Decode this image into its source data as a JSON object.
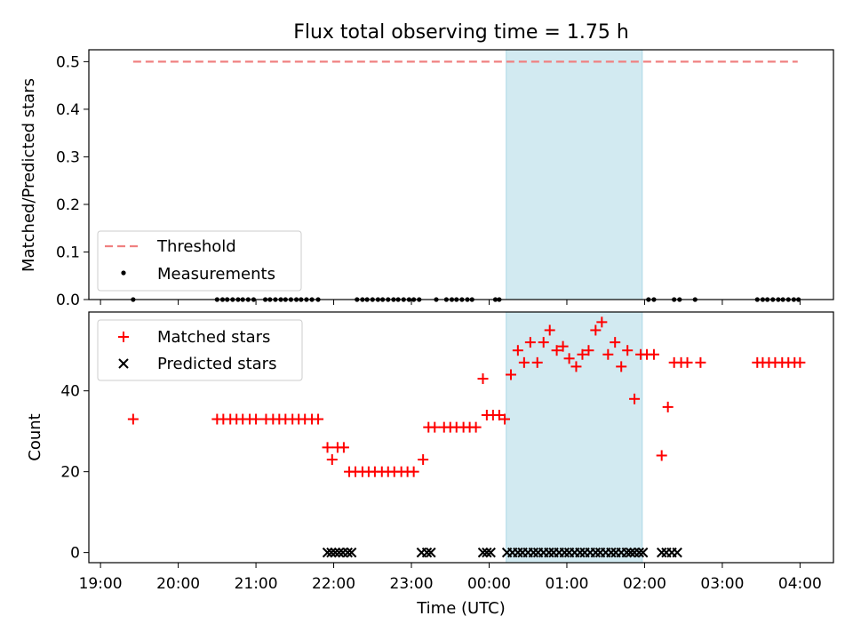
{
  "chart_data": {
    "title": "Flux total observing time = 1.75 h",
    "x_label": "Time (UTC)",
    "x_range_hours": [
      18.85,
      28.43
    ],
    "x_ticks": [
      {
        "v": 19,
        "label": "19:00"
      },
      {
        "v": 20,
        "label": "20:00"
      },
      {
        "v": 21,
        "label": "21:00"
      },
      {
        "v": 22,
        "label": "22:00"
      },
      {
        "v": 23,
        "label": "23:00"
      },
      {
        "v": 24,
        "label": "00:00"
      },
      {
        "v": 25,
        "label": "01:00"
      },
      {
        "v": 26,
        "label": "02:00"
      },
      {
        "v": 27,
        "label": "03:00"
      },
      {
        "v": 28,
        "label": "04:00"
      }
    ],
    "shaded_interval_hours": [
      24.22,
      25.97
    ],
    "colors": {
      "threshold": "#f08080",
      "matched": "#ff0000",
      "predicted": "#000000",
      "shade": "#add8e6"
    },
    "top": {
      "type": "scatter",
      "y_label": "Matched/Predicted stars",
      "y_range": [
        0,
        0.525
      ],
      "y_ticks": [
        {
          "v": 0,
          "label": "0.0"
        },
        {
          "v": 0.1,
          "label": "0.1"
        },
        {
          "v": 0.2,
          "label": "0.2"
        },
        {
          "v": 0.3,
          "label": "0.3"
        },
        {
          "v": 0.4,
          "label": "0.4"
        },
        {
          "v": 0.5,
          "label": "0.5"
        }
      ],
      "threshold": {
        "value": 0.5,
        "x_start": 19.42,
        "x_end": 27.97
      },
      "legend": {
        "threshold": "Threshold",
        "measurements": "Measurements"
      },
      "measurements": [
        [
          19.42,
          0
        ],
        [
          20.5,
          0
        ],
        [
          20.57,
          0
        ],
        [
          20.63,
          0
        ],
        [
          20.7,
          0
        ],
        [
          20.77,
          0
        ],
        [
          20.83,
          0
        ],
        [
          20.9,
          0
        ],
        [
          20.97,
          0
        ],
        [
          21.12,
          0
        ],
        [
          21.18,
          0
        ],
        [
          21.25,
          0
        ],
        [
          21.32,
          0
        ],
        [
          21.38,
          0
        ],
        [
          21.45,
          0
        ],
        [
          21.52,
          0
        ],
        [
          21.58,
          0
        ],
        [
          21.65,
          0
        ],
        [
          21.72,
          0
        ],
        [
          21.8,
          0
        ],
        [
          22.3,
          0
        ],
        [
          22.37,
          0
        ],
        [
          22.43,
          0
        ],
        [
          22.5,
          0
        ],
        [
          22.57,
          0
        ],
        [
          22.63,
          0
        ],
        [
          22.7,
          0
        ],
        [
          22.77,
          0
        ],
        [
          22.83,
          0
        ],
        [
          22.9,
          0
        ],
        [
          22.97,
          0
        ],
        [
          23.03,
          0
        ],
        [
          23.1,
          0
        ],
        [
          23.32,
          0
        ],
        [
          23.45,
          0
        ],
        [
          23.52,
          0
        ],
        [
          23.58,
          0
        ],
        [
          23.65,
          0
        ],
        [
          23.72,
          0
        ],
        [
          23.78,
          0
        ],
        [
          24.08,
          0
        ],
        [
          24.13,
          0
        ],
        [
          26.05,
          0
        ],
        [
          26.12,
          0
        ],
        [
          26.38,
          0
        ],
        [
          26.45,
          0
        ],
        [
          26.65,
          0
        ],
        [
          27.45,
          0
        ],
        [
          27.52,
          0
        ],
        [
          27.58,
          0
        ],
        [
          27.65,
          0
        ],
        [
          27.72,
          0
        ],
        [
          27.78,
          0
        ],
        [
          27.85,
          0
        ],
        [
          27.92,
          0
        ],
        [
          27.98,
          0
        ]
      ]
    },
    "bottom": {
      "type": "scatter",
      "y_label": "Count",
      "y_range": [
        -2.5,
        59.5
      ],
      "y_ticks": [
        {
          "v": 0,
          "label": "0"
        },
        {
          "v": 20,
          "label": "20"
        },
        {
          "v": 40,
          "label": "40"
        }
      ],
      "legend": {
        "matched": "Matched stars",
        "predicted": "Predicted stars"
      },
      "matched": [
        [
          19.42,
          33
        ],
        [
          20.5,
          33
        ],
        [
          20.58,
          33
        ],
        [
          20.67,
          33
        ],
        [
          20.75,
          33
        ],
        [
          20.83,
          33
        ],
        [
          20.92,
          33
        ],
        [
          21.0,
          33
        ],
        [
          21.13,
          33
        ],
        [
          21.22,
          33
        ],
        [
          21.3,
          33
        ],
        [
          21.38,
          33
        ],
        [
          21.47,
          33
        ],
        [
          21.55,
          33
        ],
        [
          21.63,
          33
        ],
        [
          21.72,
          33
        ],
        [
          21.8,
          33
        ],
        [
          21.92,
          26
        ],
        [
          21.98,
          23
        ],
        [
          22.05,
          26
        ],
        [
          22.13,
          26
        ],
        [
          22.2,
          20
        ],
        [
          22.28,
          20
        ],
        [
          22.37,
          20
        ],
        [
          22.45,
          20
        ],
        [
          22.53,
          20
        ],
        [
          22.62,
          20
        ],
        [
          22.7,
          20
        ],
        [
          22.78,
          20
        ],
        [
          22.87,
          20
        ],
        [
          22.95,
          20
        ],
        [
          23.03,
          20
        ],
        [
          23.15,
          23
        ],
        [
          23.22,
          31
        ],
        [
          23.3,
          31
        ],
        [
          23.42,
          31
        ],
        [
          23.5,
          31
        ],
        [
          23.58,
          31
        ],
        [
          23.67,
          31
        ],
        [
          23.75,
          31
        ],
        [
          23.83,
          31
        ],
        [
          23.92,
          43
        ],
        [
          23.97,
          34
        ],
        [
          24.05,
          34
        ],
        [
          24.13,
          34
        ],
        [
          24.2,
          33
        ],
        [
          24.28,
          44
        ],
        [
          24.37,
          50
        ],
        [
          24.45,
          47
        ],
        [
          24.53,
          52
        ],
        [
          24.62,
          47
        ],
        [
          24.7,
          52
        ],
        [
          24.78,
          55
        ],
        [
          24.87,
          50
        ],
        [
          24.95,
          51
        ],
        [
          25.03,
          48
        ],
        [
          25.12,
          46
        ],
        [
          25.2,
          49
        ],
        [
          25.28,
          50
        ],
        [
          25.37,
          55
        ],
        [
          25.45,
          57
        ],
        [
          25.53,
          49
        ],
        [
          25.62,
          52
        ],
        [
          25.7,
          46
        ],
        [
          25.78,
          50
        ],
        [
          25.87,
          38
        ],
        [
          25.95,
          49
        ],
        [
          26.03,
          49
        ],
        [
          26.12,
          49
        ],
        [
          26.22,
          24
        ],
        [
          26.3,
          36
        ],
        [
          26.38,
          47
        ],
        [
          26.47,
          47
        ],
        [
          26.55,
          47
        ],
        [
          26.72,
          47
        ],
        [
          27.45,
          47
        ],
        [
          27.52,
          47
        ],
        [
          27.6,
          47
        ],
        [
          27.68,
          47
        ],
        [
          27.77,
          47
        ],
        [
          27.85,
          47
        ],
        [
          27.93,
          47
        ],
        [
          28.0,
          47
        ]
      ],
      "predicted": [
        [
          21.92,
          0
        ],
        [
          21.97,
          0
        ],
        [
          22.02,
          0
        ],
        [
          22.07,
          0
        ],
        [
          22.12,
          0
        ],
        [
          22.18,
          0
        ],
        [
          22.23,
          0
        ],
        [
          23.13,
          0
        ],
        [
          23.2,
          0
        ],
        [
          23.25,
          0
        ],
        [
          23.92,
          0
        ],
        [
          23.97,
          0
        ],
        [
          24.02,
          0
        ],
        [
          24.23,
          0
        ],
        [
          24.3,
          0
        ],
        [
          24.37,
          0
        ],
        [
          24.43,
          0
        ],
        [
          24.5,
          0
        ],
        [
          24.57,
          0
        ],
        [
          24.63,
          0
        ],
        [
          24.7,
          0
        ],
        [
          24.77,
          0
        ],
        [
          24.83,
          0
        ],
        [
          24.9,
          0
        ],
        [
          24.97,
          0
        ],
        [
          25.03,
          0
        ],
        [
          25.1,
          0
        ],
        [
          25.17,
          0
        ],
        [
          25.23,
          0
        ],
        [
          25.3,
          0
        ],
        [
          25.37,
          0
        ],
        [
          25.43,
          0
        ],
        [
          25.5,
          0
        ],
        [
          25.57,
          0
        ],
        [
          25.63,
          0
        ],
        [
          25.7,
          0
        ],
        [
          25.77,
          0
        ],
        [
          25.82,
          0
        ],
        [
          25.87,
          0
        ],
        [
          25.93,
          0
        ],
        [
          25.98,
          0
        ],
        [
          26.22,
          0
        ],
        [
          26.28,
          0
        ],
        [
          26.35,
          0
        ],
        [
          26.42,
          0
        ]
      ]
    }
  }
}
